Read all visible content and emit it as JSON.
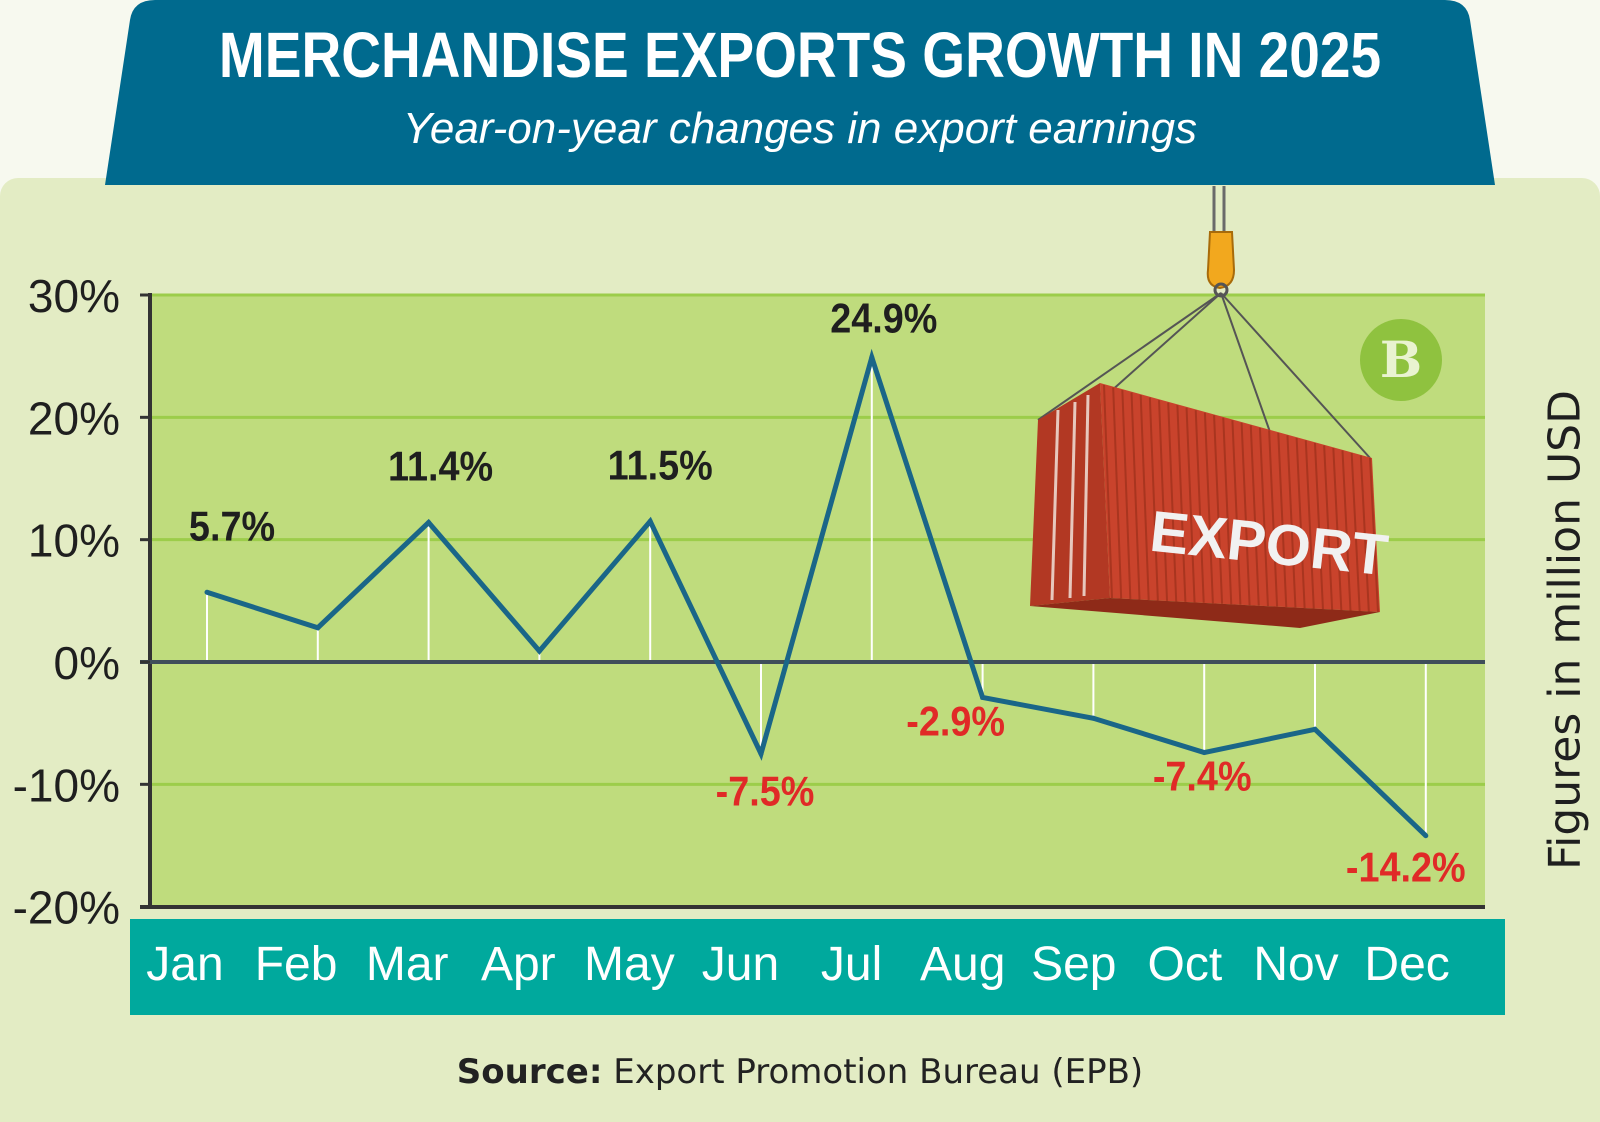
{
  "header": {
    "title": "MERCHANDISE EXPORTS GROWTH IN 2025",
    "subtitle": "Year-on-year changes in export earnings"
  },
  "chart_data": {
    "type": "line",
    "title": "MERCHANDISE EXPORTS GROWTH IN 2025",
    "subtitle": "Year-on-year changes in export earnings",
    "categories": [
      "Jan",
      "Feb",
      "Mar",
      "Apr",
      "May",
      "Jun",
      "Jul",
      "Aug",
      "Sep",
      "Oct",
      "Nov",
      "Dec"
    ],
    "series": [
      {
        "name": "Year-on-year change",
        "values": [
          5.7,
          2.8,
          11.4,
          0.9,
          11.5,
          -7.5,
          24.9,
          -2.9,
          -4.6,
          -7.4,
          -5.5,
          -14.2
        ]
      }
    ],
    "data_labels": [
      "5.7%",
      "",
      "11.4%",
      "",
      "11.5%",
      "-7.5%",
      "24.9%",
      "-2.9%",
      "",
      "-7.4%",
      "",
      "-14.2%"
    ],
    "yticks": [
      "30%",
      "20%",
      "10%",
      "0%",
      "-10%",
      "-20%"
    ],
    "ytick_values": [
      30,
      20,
      10,
      0,
      -10,
      -20
    ],
    "ylim": [
      -20,
      30
    ],
    "ylabel": "Figures in million USD",
    "xlabel": "",
    "grid": true,
    "legend": "none"
  },
  "illustration": {
    "container_text": "EXPORT",
    "logo_text": "B"
  },
  "source": {
    "label": "Source:",
    "text": " Export Promotion Bureau (EPB)"
  },
  "colors": {
    "banner": "#006a8e",
    "plot_bg": "#bfdc7d",
    "panel_bg": "#e3ecc4",
    "line": "#1a6688",
    "grid": "#9ccd4a",
    "positive_label": "#1f1f1f",
    "negative_label": "#e02a27",
    "month_bar": "#00a99d",
    "container": "#c9432c"
  }
}
